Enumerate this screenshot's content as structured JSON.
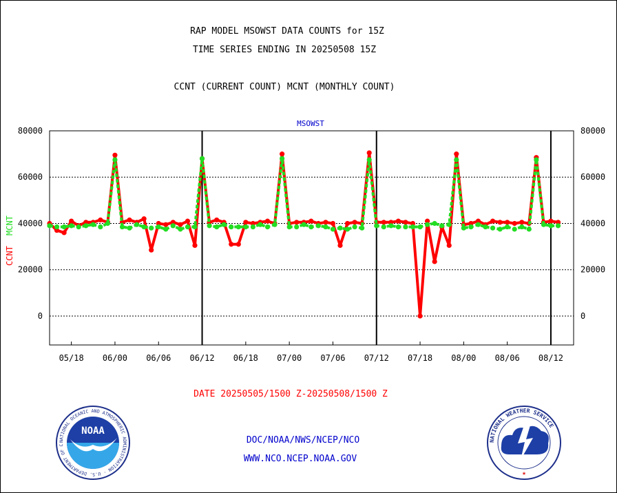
{
  "header": {
    "title_line1": "RAP MODEL MSOWST DATA COUNTS for 15Z",
    "title_line2": "TIME SERIES ENDING IN 20250508 15Z",
    "subtitle": "CCNT (CURRENT COUNT) MCNT (MONTHLY COUNT)"
  },
  "footer": {
    "date_range": "DATE 20250505/1500 Z-20250508/1500 Z",
    "org_path": "DOC/NOAA/NWS/NCEP/NCO",
    "website": "WWW.NCO.NCEP.NOAA.GOV"
  },
  "logos": {
    "noaa_text": "NOAA",
    "noaa_ring": "NATIONAL OCEANIC AND ATMOSPHERIC ADMINISTRATION · U.S. DEPARTMENT OF COMMERCE",
    "nws_ring": "NATIONAL WEATHER SERVICE"
  },
  "colors": {
    "ccnt": "#ff0000",
    "mcnt": "#22dd22",
    "title_blue": "#0000cc",
    "grid": "#000000"
  },
  "chart_data": {
    "type": "line",
    "title": "MSOWST",
    "ylabel_ccnt": "CCNT",
    "ylabel_mcnt": "MCNT",
    "ylim": [
      -12500,
      80000
    ],
    "yticks": [
      0,
      20000,
      40000,
      60000,
      80000
    ],
    "ytick_labels": [
      "0",
      "20000",
      "40000",
      "60000",
      "80000"
    ],
    "xtick_labels": [
      "05/18",
      "06/00",
      "06/06",
      "06/12",
      "06/18",
      "07/00",
      "07/06",
      "07/12",
      "07/18",
      "08/00",
      "08/06",
      "08/12"
    ],
    "day_boundaries": [
      "06/12",
      "07/12",
      "08/12"
    ],
    "x_start_hour": 15,
    "hours_per_point": 1,
    "grid": "horizontal dotted",
    "series": [
      {
        "name": "CCNT",
        "color": "#ff0000",
        "values": [
          40000,
          37000,
          36000,
          41000,
          39000,
          40500,
          40500,
          41500,
          40500,
          69500,
          40500,
          41500,
          40500,
          42000,
          28500,
          40000,
          39500,
          40500,
          39500,
          41000,
          30500,
          68000,
          40500,
          41500,
          40500,
          31000,
          31000,
          40500,
          40000,
          40500,
          41000,
          40000,
          70000,
          40000,
          40500,
          40500,
          41000,
          40000,
          40500,
          40000,
          30500,
          40000,
          40500,
          40000,
          70500,
          40500,
          40500,
          40500,
          41000,
          40500,
          40000,
          0,
          41000,
          23500,
          38500,
          30500,
          70000,
          39500,
          40000,
          41000,
          39500,
          41000,
          40500,
          40500,
          40000,
          40500,
          40000,
          68500,
          40500,
          41000,
          40500
        ]
      },
      {
        "name": "MCNT",
        "color": "#22dd22",
        "values": [
          39000,
          38500,
          38500,
          39000,
          38500,
          39000,
          39500,
          38500,
          40000,
          67500,
          38500,
          38000,
          39500,
          38500,
          38000,
          38500,
          37500,
          39000,
          37500,
          38500,
          38500,
          68000,
          39000,
          38500,
          39500,
          38500,
          38500,
          38500,
          38500,
          39500,
          38500,
          39500,
          68000,
          38500,
          38500,
          39500,
          38500,
          39000,
          38500,
          37500,
          38000,
          37500,
          38500,
          38000,
          67500,
          39000,
          38500,
          39000,
          38500,
          38500,
          38500,
          38500,
          39500,
          40000,
          39000,
          39500,
          67500,
          38000,
          38500,
          39500,
          38500,
          38000,
          37500,
          38500,
          37500,
          38500,
          37500,
          67500,
          39500,
          39000,
          39000
        ]
      }
    ]
  }
}
